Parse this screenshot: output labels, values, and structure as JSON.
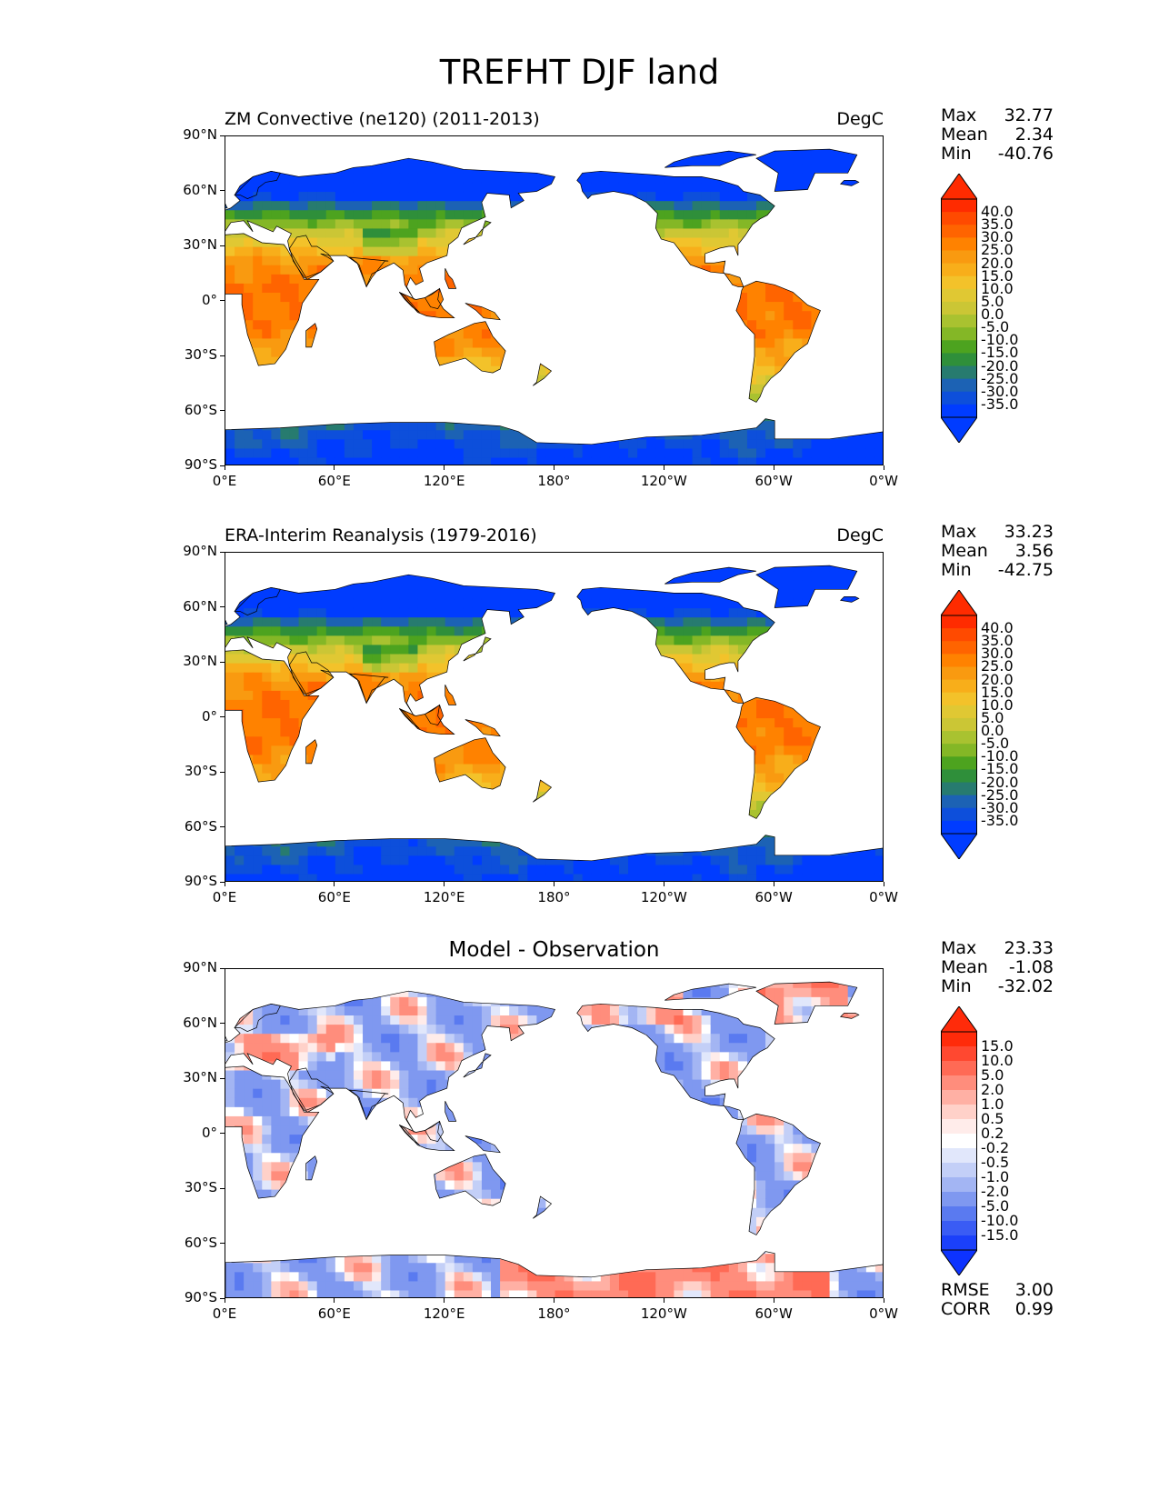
{
  "figure": {
    "title": "TREFHT DJF land"
  },
  "axes": {
    "lat_labels": [
      "90°N",
      "60°N",
      "30°N",
      "0°",
      "30°S",
      "60°S",
      "90°S"
    ],
    "lon_labels": [
      "0°E",
      "60°E",
      "120°E",
      "180°",
      "120°W",
      "60°W",
      "0°W"
    ]
  },
  "panels": [
    {
      "id": "model",
      "title_left": "ZM Convective (ne120) (2011-2013)",
      "title_center": "",
      "units": "DegC",
      "stats": [
        {
          "label": "Max",
          "value": "32.77"
        },
        {
          "label": "Mean",
          "value": "2.34"
        },
        {
          "label": "Min",
          "value": "-40.76"
        }
      ],
      "colorbar": {
        "labels": [
          "40.0",
          "35.0",
          "30.0",
          "25.0",
          "20.0",
          "15.0",
          "10.0",
          "5.0",
          "0.0",
          "-5.0",
          "-10.0",
          "-15.0",
          "-20.0",
          "-25.0",
          "-30.0",
          "-35.0"
        ],
        "colors": [
          "#ff2b00",
          "#ff4a00",
          "#ff6400",
          "#ff8200",
          "#f99a10",
          "#f8ae1a",
          "#f3c22a",
          "#e0c833",
          "#cbc635",
          "#a9c230",
          "#84b726",
          "#4da31f",
          "#2f8f3a",
          "#277b6f",
          "#1c62b4",
          "#0d4fdb",
          "#003cff"
        ],
        "extend_top": "#ff2b00",
        "extend_bottom": "#003cff"
      }
    },
    {
      "id": "obs",
      "title_left": "ERA-Interim Reanalysis (1979-2016)",
      "title_center": "",
      "units": "DegC",
      "stats": [
        {
          "label": "Max",
          "value": "33.23"
        },
        {
          "label": "Mean",
          "value": "3.56"
        },
        {
          "label": "Min",
          "value": "-42.75"
        }
      ],
      "colorbar": {
        "labels": [
          "40.0",
          "35.0",
          "30.0",
          "25.0",
          "20.0",
          "15.0",
          "10.0",
          "5.0",
          "0.0",
          "-5.0",
          "-10.0",
          "-15.0",
          "-20.0",
          "-25.0",
          "-30.0",
          "-35.0"
        ],
        "colors": [
          "#ff2b00",
          "#ff4a00",
          "#ff6400",
          "#ff8200",
          "#f99a10",
          "#f8ae1a",
          "#f3c22a",
          "#e0c833",
          "#cbc635",
          "#a9c230",
          "#84b726",
          "#4da31f",
          "#2f8f3a",
          "#277b6f",
          "#1c62b4",
          "#0d4fdb",
          "#003cff"
        ],
        "extend_top": "#ff2b00",
        "extend_bottom": "#003cff"
      }
    },
    {
      "id": "diff",
      "title_left": "",
      "title_center": "Model - Observation",
      "units": "",
      "stats": [
        {
          "label": "Max",
          "value": "23.33"
        },
        {
          "label": "Mean",
          "value": "-1.08"
        },
        {
          "label": "Min",
          "value": "-32.02"
        }
      ],
      "extra_stats": [
        {
          "label": "RMSE",
          "value": "3.00"
        },
        {
          "label": "CORR",
          "value": "0.99"
        }
      ],
      "colorbar": {
        "labels": [
          "15.0",
          "10.0",
          "5.0",
          "2.0",
          "1.0",
          "0.5",
          "0.2",
          "-0.2",
          "-0.5",
          "-1.0",
          "-2.0",
          "-5.0",
          "-10.0",
          "-15.0"
        ],
        "colors": [
          "#ff2b0a",
          "#ff4830",
          "#ff6a55",
          "#ff8d7c",
          "#ffb0a4",
          "#ffd1c9",
          "#ffecea",
          "#ffffff",
          "#e1e7fb",
          "#c3cff7",
          "#a3b5f3",
          "#7f98f0",
          "#5a7af0",
          "#3a5cf4",
          "#1b40fa"
        ],
        "extend_top": "#ff2b0a",
        "extend_bottom": "#0d33ff"
      }
    }
  ]
}
